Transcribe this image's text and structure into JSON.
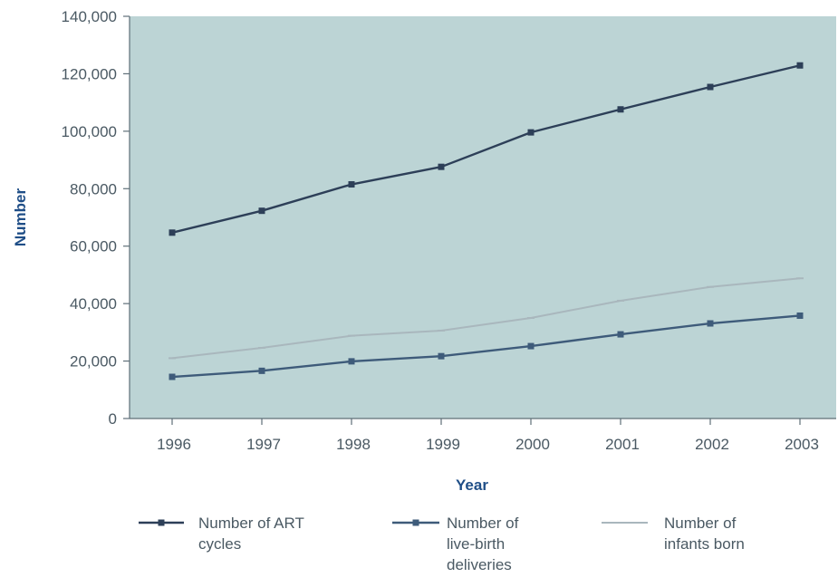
{
  "chart_data": {
    "type": "line",
    "title": "",
    "xlabel": "Year",
    "ylabel": "Number",
    "categories": [
      "1996",
      "1997",
      "1998",
      "1999",
      "2000",
      "2001",
      "2002",
      "2003"
    ],
    "ylim": [
      0,
      140000
    ],
    "yticks": [
      "0",
      "20,000",
      "40,000",
      "60,000",
      "80,000",
      "100,000",
      "120,000",
      "140,000"
    ],
    "grid": false,
    "plot_background": "#bcd4d5",
    "legend_position": "bottom",
    "series": [
      {
        "name": "Number of ART cycles",
        "legend_lines": [
          "Number of ART",
          "cycles"
        ],
        "color": "#2d3f58",
        "marker": "square",
        "values": [
          64700,
          72300,
          81500,
          87600,
          99600,
          107600,
          115400,
          122900
        ]
      },
      {
        "name": "Number of live-birth deliveries",
        "legend_lines": [
          "Number of",
          "live-birth",
          "deliveries"
        ],
        "color": "#3e5b7a",
        "marker": "square",
        "values": [
          14500,
          16600,
          19900,
          21700,
          25200,
          29300,
          33100,
          35800
        ]
      },
      {
        "name": "Number of infants born",
        "legend_lines": [
          "Number of",
          "infants born"
        ],
        "color": "#a9b7bd",
        "marker": "none",
        "values": [
          21000,
          24600,
          28800,
          30600,
          35000,
          41000,
          45800,
          48800
        ]
      }
    ]
  }
}
